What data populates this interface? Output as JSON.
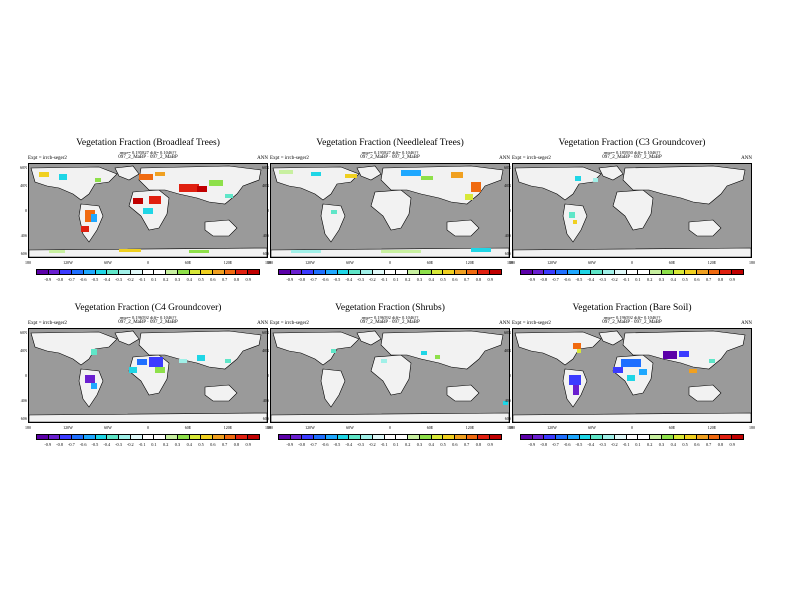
{
  "panels": [
    {
      "title": "Vegetation Fraction (Broadleaf Trees)",
      "stats": "rmse= 0.195827 diff= 0.1046??",
      "expt": "Expt = irrcb-seger2",
      "case": "097_2_MaBP · 097_2_MaBP",
      "ann": "ANN"
    },
    {
      "title": "Vegetation Fraction (Needleleaf Trees)",
      "stats": "rmse= 0.195827 diff= 0.1046??",
      "expt": "Expt = irrcb-seger2",
      "case": "097_2_MaBP · 097_2_MaBP",
      "ann": "ANN"
    },
    {
      "title": "Vegetation Fraction (C3 Groundcover)",
      "stats": "rmse= 0.185950 diff= 0.1046??",
      "expt": "Expt = irrcb-seger2",
      "case": "097_2_MaBP · 097_2_MaBP",
      "ann": "ANN"
    },
    {
      "title": "Vegetation Fraction (C4 Groundcover)",
      "stats": "rmse= 0.196592 diff= 0.1046??",
      "expt": "Expt = irrcb-seger2",
      "case": "097_2_MaBP · 097_2_MaBP",
      "ann": "ANN"
    },
    {
      "title": "Vegetation Fraction (Shrubs)",
      "stats": "rmse= 0.196592 diff= 0.1046??",
      "expt": "Expt = irrcb-seger2",
      "case": "097_2_MaBP · 097_2_MaBP",
      "ann": "ANN"
    },
    {
      "title": "Vegetation Fraction (Bare Soil)",
      "stats": "rmse= 0.196592 diff= 0.1046??",
      "expt": "Expt = irrcb-seger2",
      "case": "097_2_MaBP · 097_2_MaBP",
      "ann": "ANN"
    }
  ],
  "lat_labels": [
    "60N",
    "40N",
    "0",
    "40S",
    "60S"
  ],
  "lon_labels": [
    "180",
    "120W",
    "60W",
    "0",
    "60E",
    "120E",
    "180"
  ],
  "colorbar": {
    "ticks": [
      "-0.9",
      "-0.8",
      "-0.7",
      "-0.6",
      "-0.5",
      "-0.4",
      "-0.3",
      "-0.2",
      "-0.1",
      "0.1",
      "0.2",
      "0.3",
      "0.4",
      "0.5",
      "0.6",
      "0.7",
      "0.8",
      "0.9"
    ],
    "colors": [
      "#5b00a8",
      "#6a1fd0",
      "#3b3bff",
      "#1f6fff",
      "#1fa8ff",
      "#1fd6e6",
      "#5fe6c8",
      "#a0f0e8",
      "#e0f8f8",
      "#ffffff",
      "#ffffff",
      "#c8f0a0",
      "#8ee04a",
      "#d8e838",
      "#f0d020",
      "#f0a020",
      "#f06a10",
      "#e02010",
      "#c00000"
    ]
  },
  "colors": {
    "ocean": "#9a9a9a",
    "land": "#f2f2f2"
  }
}
